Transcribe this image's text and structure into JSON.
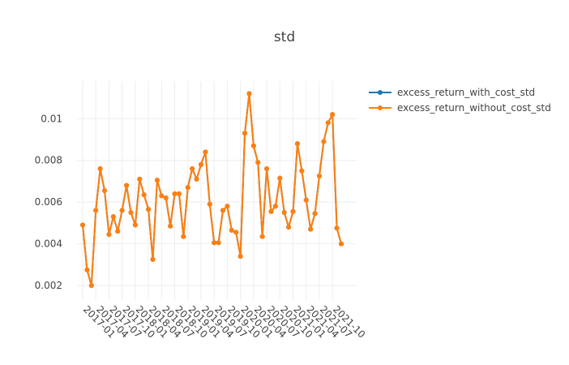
{
  "chart_data": {
    "type": "line",
    "title": "std",
    "xlabel": "",
    "ylabel": "",
    "x_tick_labels": [
      "2017-01",
      "2017-04",
      "2017-07",
      "2017-10",
      "2018-01",
      "2018-04",
      "2018-07",
      "2018-10",
      "2019-01",
      "2019-04",
      "2019-07",
      "2019-10",
      "2020-01",
      "2020-04",
      "2020-07",
      "2020-10",
      "2021-01",
      "2021-04",
      "2021-07",
      "2021-10"
    ],
    "y_tick_labels": [
      "0.002",
      "0.004",
      "0.006",
      "0.008",
      "0.01"
    ],
    "y_ticks": [
      0.002,
      0.004,
      0.006,
      0.008,
      0.01
    ],
    "ylim": [
      0.0013,
      0.0118
    ],
    "grid": true,
    "legend_position": "top-right",
    "x_start": "2017-01",
    "series": [
      {
        "name": "excess_return_with_cost_std",
        "color": "#1f77b4",
        "values": [
          0.0049,
          0.00275,
          0.002,
          0.0056,
          0.0076,
          0.00655,
          0.00445,
          0.0053,
          0.0046,
          0.0056,
          0.0068,
          0.0055,
          0.0049,
          0.0071,
          0.00635,
          0.00565,
          0.00325,
          0.00705,
          0.0063,
          0.0062,
          0.00485,
          0.0064,
          0.0064,
          0.00435,
          0.0067,
          0.0076,
          0.0071,
          0.0078,
          0.0084,
          0.0059,
          0.00405,
          0.00405,
          0.0056,
          0.0058,
          0.00465,
          0.00455,
          0.0034,
          0.0093,
          0.0112,
          0.0087,
          0.0079,
          0.00435,
          0.0076,
          0.00555,
          0.0058,
          0.00715,
          0.0055,
          0.0048,
          0.00555,
          0.0088,
          0.0075,
          0.0061,
          0.0047,
          0.00545,
          0.00725,
          0.0089,
          0.0098,
          0.0102,
          0.00475,
          0.004
        ]
      },
      {
        "name": "excess_return_without_cost_std",
        "color": "#ff7f0e",
        "values": [
          0.0049,
          0.00275,
          0.002,
          0.0056,
          0.0076,
          0.00655,
          0.00445,
          0.0053,
          0.0046,
          0.0056,
          0.0068,
          0.0055,
          0.0049,
          0.0071,
          0.00635,
          0.00565,
          0.00325,
          0.00705,
          0.0063,
          0.0062,
          0.00485,
          0.0064,
          0.0064,
          0.00435,
          0.0067,
          0.0076,
          0.0071,
          0.0078,
          0.0084,
          0.0059,
          0.00405,
          0.00405,
          0.0056,
          0.0058,
          0.00465,
          0.00455,
          0.0034,
          0.0093,
          0.0112,
          0.0087,
          0.0079,
          0.00435,
          0.0076,
          0.00555,
          0.0058,
          0.00715,
          0.0055,
          0.0048,
          0.00555,
          0.0088,
          0.0075,
          0.0061,
          0.0047,
          0.00545,
          0.00725,
          0.0089,
          0.0098,
          0.0102,
          0.00475,
          0.004
        ]
      }
    ]
  }
}
